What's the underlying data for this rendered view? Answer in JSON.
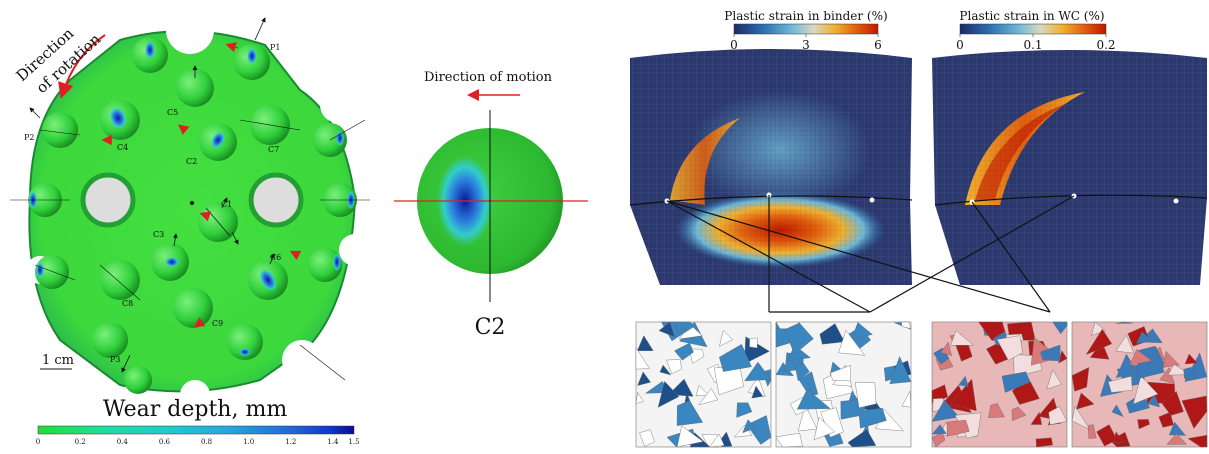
{
  "left_panel": {
    "rotation_label_line1": "Direction",
    "rotation_label_line2": "of rotation",
    "scale_bar_label": "1 cm",
    "wear_title": "Wear depth, mm",
    "wear_colorbar": {
      "colors": [
        "#22dd33",
        "#22dd99",
        "#22cccc",
        "#22aadd",
        "#2266dd",
        "#1133cc",
        "#0a0a99"
      ],
      "ticks": [
        "0",
        "0.2",
        "0.4",
        "0.6",
        "0.8",
        "1.0",
        "1.2",
        "1.4",
        "1.5"
      ]
    },
    "buttons": [
      {
        "id": "C1",
        "label": "C1"
      },
      {
        "id": "C2",
        "label": "C2"
      },
      {
        "id": "C3",
        "label": "C3"
      },
      {
        "id": "C4",
        "label": "C4"
      },
      {
        "id": "C5",
        "label": "C5"
      },
      {
        "id": "C6",
        "label": "C6"
      },
      {
        "id": "C7",
        "label": "C7"
      },
      {
        "id": "C8",
        "label": "C8"
      },
      {
        "id": "C9",
        "label": "C9"
      },
      {
        "id": "P1",
        "label": "P1"
      },
      {
        "id": "P2",
        "label": "P2"
      },
      {
        "id": "P3",
        "label": "P3"
      }
    ]
  },
  "middle_panel": {
    "motion_label": "Direction of motion",
    "button_label": "C2"
  },
  "right_panel": {
    "binder": {
      "title": "Plastic strain in binder (%)",
      "ticks": [
        "0",
        "3",
        "6"
      ]
    },
    "wc": {
      "title": "Plastic strain in WC (%)",
      "ticks": [
        "0",
        "0.1",
        "0.2"
      ]
    },
    "colormap": [
      "#1e2a66",
      "#2a6fb0",
      "#6fb8d8",
      "#d8d8c0",
      "#f0b030",
      "#e06010",
      "#c01800"
    ],
    "mesh_color": "#2c3a70"
  }
}
